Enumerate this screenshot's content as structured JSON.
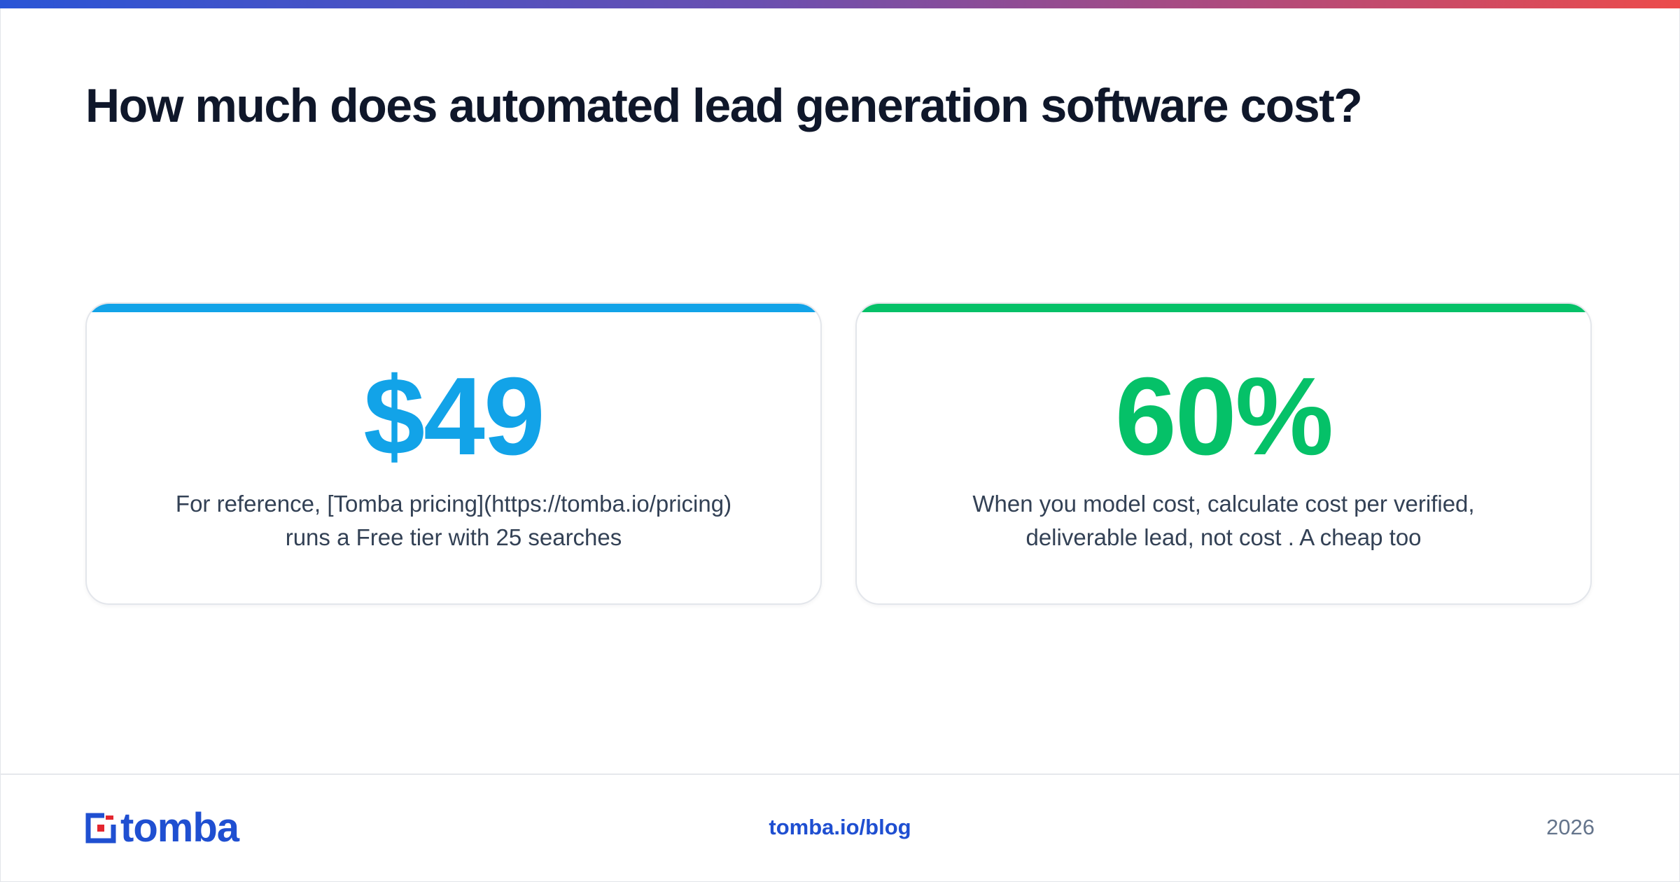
{
  "header": {
    "title": "How much does automated lead generation software cost?"
  },
  "stats": [
    {
      "value": "$49",
      "color": "#12a3e8",
      "description_lines": [
        "For reference, [Tomba pricing](https://tomba.io/pricing)",
        "runs a Free tier with 25 searches"
      ]
    },
    {
      "value": "60%",
      "color": "#05c168",
      "description_lines": [
        "When you model cost, calculate cost per verified,",
        "deliverable lead, not cost . A cheap too"
      ]
    }
  ],
  "footer": {
    "logo_text": "tomba",
    "logo_icon": "tomba-logo-icon",
    "brand_color": "#1f4fd1",
    "accent_red": "#e3262f",
    "link": "tomba.io/blog",
    "year": "2026"
  }
}
